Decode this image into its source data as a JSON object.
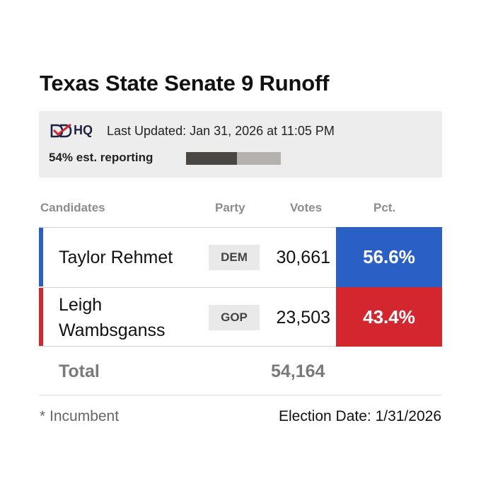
{
  "title": "Texas State Senate 9 Runoff",
  "info": {
    "logo_text": "HQ",
    "logo_icon": "ddhq-check-logo",
    "last_updated": "Last Updated: Jan 31, 2026 at 11:05 PM",
    "reporting_label": "54% est. reporting",
    "reporting_fraction": 0.54
  },
  "columns": {
    "candidates": "Candidates",
    "party": "Party",
    "votes": "Votes",
    "pct": "Pct."
  },
  "candidates": [
    {
      "name": "Taylor Rehmet",
      "party": "DEM",
      "votes": "30,661",
      "pct": "56.6%",
      "color": "#2a5fc6"
    },
    {
      "name": "Leigh Wambsganss",
      "party": "GOP",
      "votes": "23,503",
      "pct": "43.4%",
      "color": "#d3262f"
    }
  ],
  "total": {
    "label": "Total",
    "value": "54,164"
  },
  "footer": {
    "incumbent_note": "* Incumbent",
    "election_date": "Election Date: 1/31/2026"
  }
}
